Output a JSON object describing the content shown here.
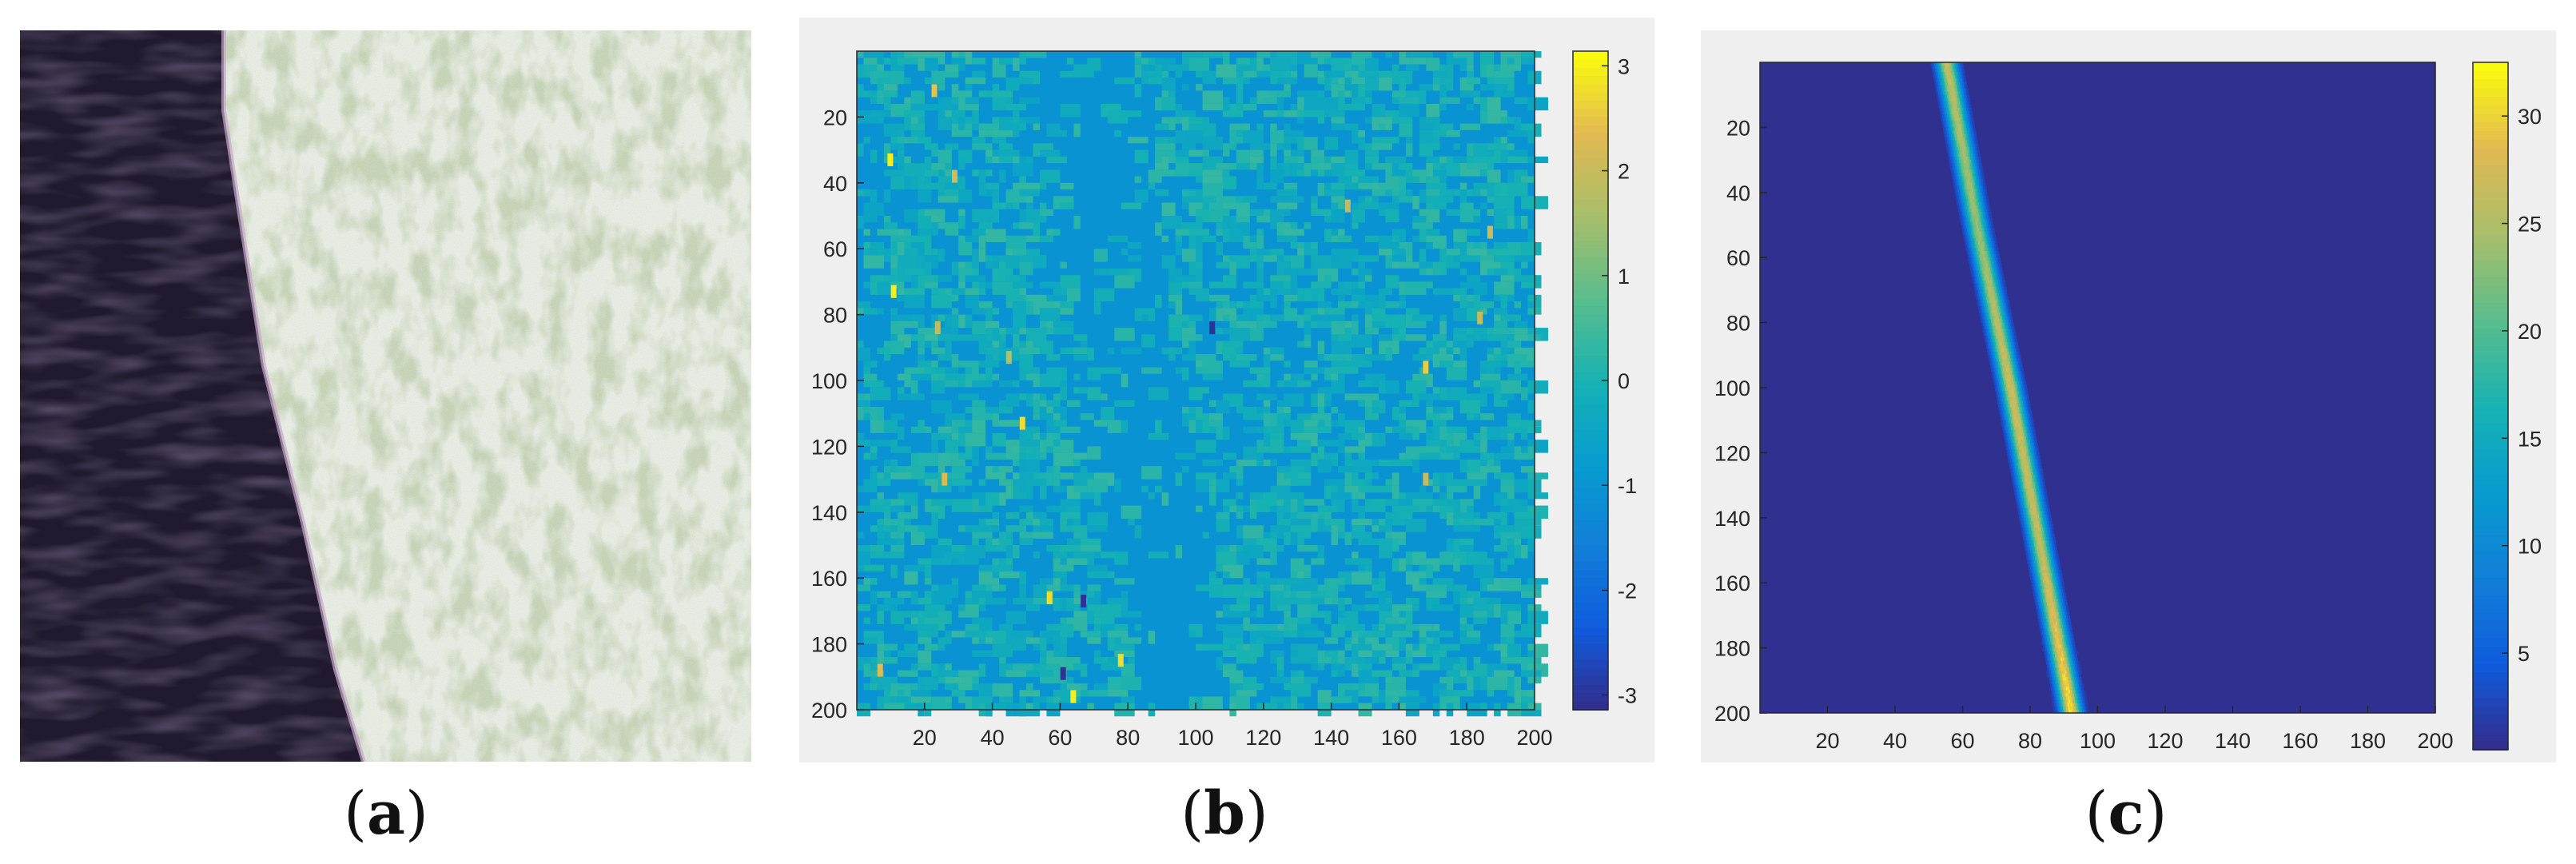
{
  "panels": [
    {
      "id": "a",
      "caption_letter": "a",
      "kind": "image",
      "image_description_colors": {
        "water": "#211a2e",
        "land_light": "#d7e3cf",
        "vegetation": "#4b6a2c"
      }
    },
    {
      "id": "b",
      "caption_letter": "b",
      "kind": "heatmap",
      "background": "#efefef",
      "base_color": "#2f7ff0"
    },
    {
      "id": "c",
      "caption_letter": "c",
      "kind": "heatmap",
      "background": "#efefef",
      "base_color": "#3a2ec8"
    }
  ],
  "chart_data": [
    {
      "type": "heatmap",
      "panel": "b",
      "title": "",
      "xlabel": "",
      "ylabel": "",
      "xlim": [
        0,
        200
      ],
      "ylim": [
        200,
        0
      ],
      "x_ticks": [
        20,
        40,
        60,
        80,
        100,
        120,
        140,
        160,
        180,
        200
      ],
      "y_ticks": [
        20,
        40,
        60,
        80,
        100,
        120,
        140,
        160,
        180,
        200
      ],
      "x_tick_labels": [
        "20",
        "40",
        "60",
        "80",
        "100",
        "120",
        "140",
        "160",
        "180",
        "200"
      ],
      "y_tick_labels": [
        "20",
        "40",
        "60",
        "80",
        "100",
        "120",
        "140",
        "160",
        "180",
        "200"
      ],
      "colorbar": {
        "range": [
          -3.14,
          3.14
        ],
        "ticks": [
          3,
          2,
          1,
          0,
          -1,
          -2,
          -3
        ],
        "tick_labels": [
          "3",
          "2",
          "1",
          "0",
          "-1",
          "-2",
          "-3"
        ]
      },
      "dominant_value": -1.0,
      "outliers": [
        {
          "x": 23,
          "y": 12,
          "v": 2.5
        },
        {
          "x": 10,
          "y": 33,
          "v": 3.0
        },
        {
          "x": 29,
          "y": 38,
          "v": 2.2
        },
        {
          "x": 11,
          "y": 73,
          "v": 3.0
        },
        {
          "x": 24,
          "y": 84,
          "v": 2.0
        },
        {
          "x": 45,
          "y": 93,
          "v": 1.8
        },
        {
          "x": 49,
          "y": 113,
          "v": 2.8
        },
        {
          "x": 26,
          "y": 130,
          "v": 2.3
        },
        {
          "x": 145,
          "y": 47,
          "v": 2.0
        },
        {
          "x": 187,
          "y": 55,
          "v": 2.1
        },
        {
          "x": 105,
          "y": 84,
          "v": -3.0
        },
        {
          "x": 168,
          "y": 96,
          "v": 2.6
        },
        {
          "x": 184,
          "y": 81,
          "v": 2.0
        },
        {
          "x": 168,
          "y": 130,
          "v": 2.0
        },
        {
          "x": 57,
          "y": 166,
          "v": 2.8
        },
        {
          "x": 67,
          "y": 167,
          "v": -3.0
        },
        {
          "x": 78,
          "y": 185,
          "v": 2.8
        },
        {
          "x": 61,
          "y": 189,
          "v": -3.0
        },
        {
          "x": 64,
          "y": 196,
          "v": 3.0
        },
        {
          "x": 7,
          "y": 188,
          "v": 2.4
        }
      ]
    },
    {
      "type": "heatmap",
      "panel": "c",
      "title": "",
      "xlabel": "",
      "ylabel": "",
      "xlim": [
        0,
        200
      ],
      "ylim": [
        200,
        0
      ],
      "x_ticks": [
        20,
        40,
        60,
        80,
        100,
        120,
        140,
        160,
        180,
        200
      ],
      "y_ticks": [
        20,
        40,
        60,
        80,
        100,
        120,
        140,
        160,
        180,
        200
      ],
      "x_tick_labels": [
        "20",
        "40",
        "60",
        "80",
        "100",
        "120",
        "140",
        "160",
        "180",
        "200"
      ],
      "y_tick_labels": [
        "20",
        "40",
        "60",
        "80",
        "100",
        "120",
        "140",
        "160",
        "180",
        "200"
      ],
      "colorbar": {
        "range": [
          0.5,
          32.5
        ],
        "ticks": [
          30,
          25,
          20,
          15,
          10,
          5
        ],
        "tick_labels": [
          "30",
          "25",
          "20",
          "15",
          "10",
          "5"
        ]
      },
      "background_value": 1.0,
      "ridge": {
        "description": "bright diagonal line",
        "points": [
          {
            "y": 0,
            "x": 55,
            "v": 27
          },
          {
            "y": 50,
            "x": 64,
            "v": 24
          },
          {
            "y": 100,
            "x": 74,
            "v": 28
          },
          {
            "y": 150,
            "x": 83,
            "v": 27
          },
          {
            "y": 200,
            "x": 92,
            "v": 32
          }
        ],
        "width_units": 7
      }
    }
  ]
}
